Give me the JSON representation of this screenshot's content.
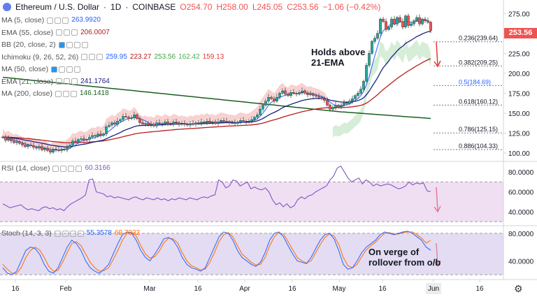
{
  "header": {
    "symbol": "Ethereum / U.S. Dollar",
    "interval": "1D",
    "exchange": "COINBASE",
    "open": "O254.70",
    "high": "H258.00",
    "low": "L245.05",
    "close": "C253.56",
    "change": "−1.06 (−0.42%)"
  },
  "indicators": [
    {
      "label": "MA (5, close)",
      "values": [
        "263.9920"
      ],
      "colors": [
        "#2962ff"
      ]
    },
    {
      "label": "EMA (55, close)",
      "values": [
        "206.0007"
      ],
      "colors": [
        "#b71c1c"
      ]
    },
    {
      "label": "BB (20, close, 2)",
      "values": [],
      "colors": []
    },
    {
      "label": "Ichimoku (9, 26, 52, 26)",
      "values": [
        "259.95",
        "223.27",
        "253.56",
        "162.42",
        "159.13"
      ],
      "colors": [
        "#2962ff",
        "#b71c1c",
        "#43a047",
        "#4caf50",
        "#e53935"
      ]
    },
    {
      "label": "MA (50, close)",
      "values": [],
      "colors": []
    },
    {
      "label": "EMA (21, close)",
      "values": [
        "241.1764"
      ],
      "colors": [
        "#1a237e"
      ]
    },
    {
      "label": "MA (200, close)",
      "values": [
        "146.1418"
      ],
      "colors": [
        "#1b5e20"
      ]
    }
  ],
  "rsi_header": {
    "label": "RSI (14, close)",
    "value": "60.3166"
  },
  "stoch_header": {
    "label": "Stoch (14, 3, 3)",
    "values": [
      "55.3578",
      "69.7032"
    ]
  },
  "price_tag": "253.56",
  "annotations": {
    "main": [
      "Holds above",
      "21-EMA"
    ],
    "stoch": [
      "On verge of",
      "rollover from o/b"
    ]
  },
  "chart_data": {
    "type": "candlestick",
    "x_ticks": [
      "16",
      "Feb",
      "Mar",
      "16",
      "Apr",
      "16",
      "May",
      "16",
      "Jun",
      "16"
    ],
    "price_axis": {
      "ticks": [
        "275.00",
        "250.00",
        "225.00",
        "200.00",
        "175.00",
        "150.00",
        "125.00",
        "100.00"
      ],
      "ylim": [
        92,
        292
      ]
    },
    "rsi_axis": {
      "ticks": [
        "80.0000",
        "60.0000",
        "40.0000"
      ],
      "ylim": [
        28,
        90
      ],
      "band": [
        30,
        70
      ]
    },
    "stoch_axis": {
      "ticks": [
        "80.0000",
        "40.0000"
      ],
      "ylim": [
        15,
        90
      ],
      "band": [
        20,
        80
      ]
    },
    "fib_levels": [
      {
        "label": "0.236(239.64)",
        "value": 239.64
      },
      {
        "label": "0.382(209.25)",
        "value": 209.25
      },
      {
        "label": "0.5(184.69)",
        "value": 184.69
      },
      {
        "label": "0.618(160.12)",
        "value": 160.12
      },
      {
        "label": "0.786(125.15)",
        "value": 125.15
      },
      {
        "label": "0.886(104.33)",
        "value": 104.33
      }
    ],
    "close": [
      120,
      116,
      118,
      115,
      113,
      114,
      112,
      110,
      108,
      110,
      109,
      107,
      106,
      108,
      104,
      106,
      103,
      101,
      105,
      104,
      103,
      105,
      104,
      107,
      110,
      115,
      114,
      117,
      118,
      116,
      117,
      120,
      122,
      121,
      124,
      122,
      124,
      133,
      135,
      138,
      136,
      140,
      142,
      146,
      145,
      143,
      144,
      148,
      143,
      138,
      136,
      137,
      135,
      136,
      134,
      138,
      137,
      136,
      139,
      137,
      136,
      139,
      138,
      136,
      137,
      136,
      135,
      137,
      136,
      138,
      137,
      139,
      138,
      140,
      138,
      139,
      137,
      139,
      141,
      140,
      139,
      138,
      138,
      137,
      139,
      141,
      140,
      139,
      140,
      142,
      145,
      148,
      155,
      160,
      165,
      170,
      168,
      165,
      170,
      175,
      178,
      174,
      172,
      176,
      175,
      174,
      176,
      178,
      175,
      173,
      174,
      172,
      171,
      170,
      168,
      166,
      160,
      155,
      157,
      160,
      158,
      160,
      163,
      162,
      165,
      168,
      172,
      175,
      180,
      190,
      210,
      225,
      240,
      244,
      250,
      268,
      265,
      255,
      258,
      268,
      262,
      270,
      265,
      258,
      272,
      260,
      262,
      266,
      270,
      262,
      268,
      266,
      264,
      253.56
    ],
    "rsi": [
      48,
      46,
      44,
      45,
      46,
      47,
      44,
      42,
      43,
      42,
      41,
      44,
      45,
      43,
      44,
      42,
      43,
      41,
      45,
      48,
      50,
      52,
      54,
      57,
      72,
      73,
      60,
      59,
      58,
      55,
      56,
      54,
      55,
      54,
      53,
      52,
      54,
      55,
      53,
      52,
      54,
      53,
      52,
      54,
      52,
      53,
      51,
      53,
      52,
      54,
      53,
      52,
      54,
      53,
      52,
      54,
      55,
      54,
      56,
      57,
      72,
      70,
      64,
      66,
      72,
      71,
      66,
      68,
      70,
      63,
      65,
      63,
      62,
      64,
      60,
      52,
      47,
      49,
      45,
      48,
      44,
      46,
      52,
      55,
      53,
      56,
      57,
      60,
      62,
      64,
      66,
      72,
      76,
      84,
      86,
      80,
      74,
      70,
      72,
      74,
      68,
      72,
      70,
      66,
      68,
      66,
      67,
      68,
      67,
      65,
      63,
      64,
      66,
      70,
      67,
      69,
      68,
      69,
      61,
      60.3
    ],
    "stoch_k": [
      30,
      22,
      20,
      25,
      40,
      55,
      60,
      58,
      50,
      35,
      25,
      22,
      30,
      45,
      60,
      70,
      65,
      55,
      40,
      30,
      25,
      22,
      28,
      35,
      50,
      65,
      78,
      82,
      80,
      70,
      55,
      45,
      40,
      50,
      60,
      72,
      74,
      70,
      60,
      45,
      35,
      30,
      28,
      25,
      30,
      45,
      60,
      75,
      82,
      80,
      70,
      55,
      45,
      40,
      35,
      32,
      38,
      52,
      70,
      80,
      82,
      75,
      62,
      50,
      40,
      38,
      36,
      45,
      58,
      70,
      78,
      80,
      72,
      55,
      35,
      28,
      30,
      40,
      52,
      60,
      65,
      70,
      78,
      82,
      80,
      78,
      80,
      82,
      83,
      80,
      75,
      70,
      60,
      55.4
    ],
    "stoch_d": [
      35,
      28,
      22,
      22,
      30,
      45,
      55,
      60,
      56,
      45,
      32,
      25,
      26,
      38,
      52,
      65,
      68,
      62,
      50,
      38,
      30,
      25,
      26,
      30,
      42,
      55,
      70,
      80,
      82,
      76,
      62,
      50,
      44,
      46,
      54,
      66,
      73,
      72,
      66,
      52,
      40,
      33,
      30,
      27,
      28,
      38,
      52,
      68,
      78,
      81,
      75,
      62,
      50,
      44,
      38,
      34,
      35,
      45,
      62,
      75,
      81,
      79,
      68,
      56,
      45,
      40,
      37,
      40,
      52,
      64,
      74,
      79,
      76,
      64,
      45,
      33,
      30,
      35,
      46,
      56,
      62,
      67,
      74,
      80,
      81,
      79,
      79,
      81,
      82,
      82,
      78,
      73,
      66,
      69.7
    ]
  }
}
